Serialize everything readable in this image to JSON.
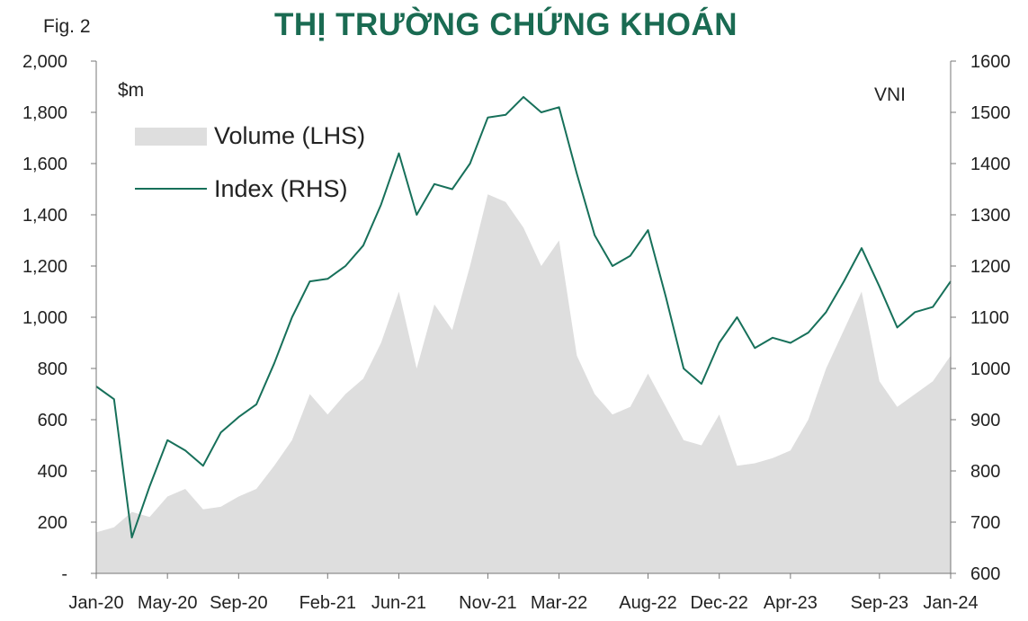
{
  "figure_label": "Fig. 2",
  "chart_data": {
    "type": "area+line",
    "title": "THỊ TRƯỜNG CHỨNG KHOÁN",
    "left_unit": "$m",
    "right_unit": "VNI",
    "legend": [
      "Volume (LHS)",
      "Index (RHS)"
    ],
    "legend_position": "top-left",
    "grid": false,
    "y_left": {
      "min": 0,
      "max": 2000,
      "ticks": [
        0,
        200,
        400,
        600,
        800,
        1000,
        1200,
        1400,
        1600,
        1800,
        2000
      ],
      "tick_labels": [
        "-",
        "200",
        "400",
        "600",
        "800",
        "1,000",
        "1,200",
        "1,400",
        "1,600",
        "1,800",
        "2,000"
      ]
    },
    "y_right": {
      "min": 600,
      "max": 1600,
      "ticks": [
        600,
        700,
        800,
        900,
        1000,
        1100,
        1200,
        1300,
        1400,
        1500,
        1600
      ],
      "tick_labels": [
        "600",
        "700",
        "800",
        "900",
        "1000",
        "1100",
        "1200",
        "1300",
        "1400",
        "1500",
        "1600"
      ]
    },
    "x_tick_labels": [
      "Jan-20",
      "May-20",
      "Sep-20",
      "Feb-21",
      "Jun-21",
      "Nov-21",
      "Mar-22",
      "Aug-22",
      "Dec-22",
      "Apr-23",
      "Sep-23",
      "Jan-24"
    ],
    "x_tick_dates": [
      "2020-01",
      "2020-05",
      "2020-09",
      "2021-02",
      "2021-06",
      "2021-11",
      "2022-03",
      "2022-08",
      "2022-12",
      "2023-04",
      "2023-09",
      "2024-01"
    ],
    "x_range": [
      "2020-01",
      "2024-01"
    ],
    "colors": {
      "volume": "#dedede",
      "index": "#17705a",
      "title": "#1a6b52"
    },
    "series": [
      {
        "name": "Index (RHS)",
        "axis": "right",
        "x": [
          "2020-01",
          "2020-02",
          "2020-03",
          "2020-04",
          "2020-05",
          "2020-06",
          "2020-07",
          "2020-08",
          "2020-09",
          "2020-10",
          "2020-11",
          "2020-12",
          "2021-01",
          "2021-02",
          "2021-03",
          "2021-04",
          "2021-05",
          "2021-06",
          "2021-07",
          "2021-08",
          "2021-09",
          "2021-10",
          "2021-11",
          "2021-12",
          "2022-01",
          "2022-02",
          "2022-03",
          "2022-04",
          "2022-05",
          "2022-06",
          "2022-07",
          "2022-08",
          "2022-09",
          "2022-10",
          "2022-11",
          "2022-12",
          "2023-01",
          "2023-02",
          "2023-03",
          "2023-04",
          "2023-05",
          "2023-06",
          "2023-07",
          "2023-08",
          "2023-09",
          "2023-10",
          "2023-11",
          "2023-12",
          "2024-01"
        ],
        "values": [
          965,
          940,
          670,
          770,
          860,
          840,
          810,
          875,
          905,
          930,
          1010,
          1100,
          1170,
          1175,
          1200,
          1240,
          1320,
          1420,
          1300,
          1360,
          1350,
          1400,
          1490,
          1495,
          1530,
          1500,
          1510,
          1380,
          1260,
          1200,
          1220,
          1270,
          1140,
          1000,
          970,
          1050,
          1100,
          1040,
          1060,
          1050,
          1070,
          1110,
          1170,
          1235,
          1160,
          1080,
          1110,
          1120,
          1170
        ]
      },
      {
        "name": "Volume (LHS)",
        "axis": "left",
        "x": [
          "2020-01",
          "2020-02",
          "2020-03",
          "2020-04",
          "2020-05",
          "2020-06",
          "2020-07",
          "2020-08",
          "2020-09",
          "2020-10",
          "2020-11",
          "2020-12",
          "2021-01",
          "2021-02",
          "2021-03",
          "2021-04",
          "2021-05",
          "2021-06",
          "2021-07",
          "2021-08",
          "2021-09",
          "2021-10",
          "2021-11",
          "2021-12",
          "2022-01",
          "2022-02",
          "2022-03",
          "2022-04",
          "2022-05",
          "2022-06",
          "2022-07",
          "2022-08",
          "2022-09",
          "2022-10",
          "2022-11",
          "2022-12",
          "2023-01",
          "2023-02",
          "2023-03",
          "2023-04",
          "2023-05",
          "2023-06",
          "2023-07",
          "2023-08",
          "2023-09",
          "2023-10",
          "2023-11",
          "2023-12",
          "2024-01"
        ],
        "values": [
          160,
          180,
          240,
          220,
          300,
          330,
          250,
          260,
          300,
          330,
          420,
          520,
          700,
          620,
          700,
          760,
          900,
          1100,
          800,
          1050,
          950,
          1200,
          1480,
          1450,
          1350,
          1200,
          1300,
          850,
          700,
          620,
          650,
          780,
          650,
          520,
          500,
          620,
          420,
          430,
          450,
          480,
          600,
          800,
          950,
          1100,
          750,
          650,
          700,
          750,
          850
        ]
      }
    ]
  }
}
